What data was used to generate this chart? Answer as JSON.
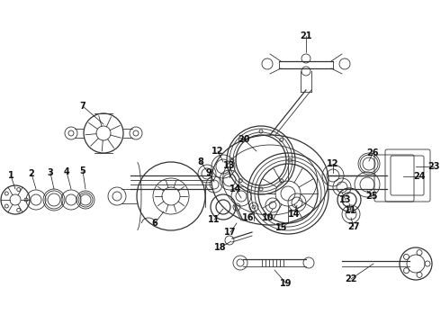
{
  "bg_color": "#ffffff",
  "line_color": "#333333",
  "text_color": "#111111",
  "fig_width": 4.9,
  "fig_height": 3.6,
  "dpi": 100
}
